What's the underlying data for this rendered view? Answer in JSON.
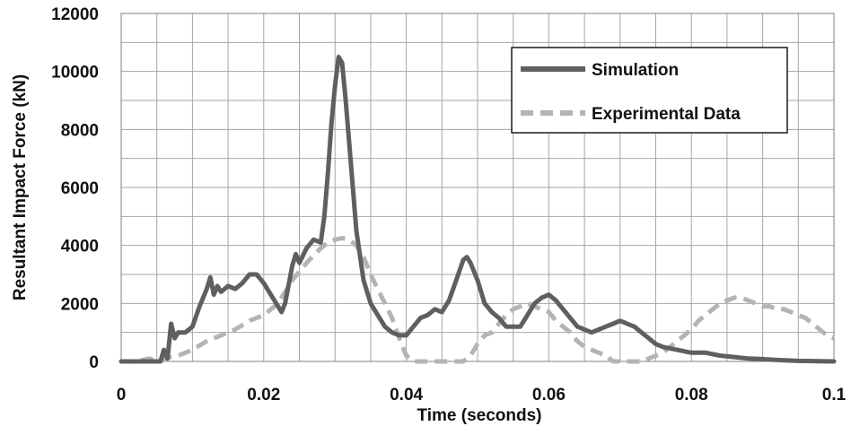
{
  "chart_data": {
    "type": "line",
    "title": "",
    "xlabel": "Time (seconds)",
    "ylabel": "Resultant Impact Force (kN)",
    "xlim": [
      0,
      0.1
    ],
    "ylim": [
      0,
      12000
    ],
    "x_ticks": [
      0,
      0.02,
      0.04,
      0.06,
      0.08,
      0.1
    ],
    "x_tick_labels": [
      "0",
      "0.02",
      "0.04",
      "0.06",
      "0.08",
      "0.1"
    ],
    "y_ticks": [
      0,
      2000,
      4000,
      6000,
      8000,
      10000,
      12000
    ],
    "y_tick_labels": [
      "0",
      "2000",
      "4000",
      "6000",
      "8000",
      "10000",
      "12000"
    ],
    "grid": true,
    "legend_position": "top-right",
    "series": [
      {
        "name": "Simulation",
        "color": "#5f5f5f",
        "style": "solid",
        "x": [
          0,
          0.004,
          0.0055,
          0.006,
          0.0065,
          0.007,
          0.0075,
          0.008,
          0.009,
          0.01,
          0.011,
          0.012,
          0.0125,
          0.013,
          0.0135,
          0.014,
          0.015,
          0.016,
          0.017,
          0.018,
          0.019,
          0.02,
          0.021,
          0.022,
          0.0225,
          0.023,
          0.024,
          0.0245,
          0.025,
          0.026,
          0.027,
          0.028,
          0.0285,
          0.029,
          0.0295,
          0.03,
          0.0305,
          0.031,
          0.0315,
          0.032,
          0.033,
          0.034,
          0.035,
          0.036,
          0.037,
          0.038,
          0.039,
          0.04,
          0.041,
          0.042,
          0.043,
          0.044,
          0.045,
          0.046,
          0.047,
          0.048,
          0.0485,
          0.049,
          0.05,
          0.051,
          0.052,
          0.053,
          0.054,
          0.055,
          0.056,
          0.057,
          0.058,
          0.059,
          0.06,
          0.061,
          0.062,
          0.063,
          0.064,
          0.065,
          0.066,
          0.067,
          0.068,
          0.069,
          0.07,
          0.071,
          0.072,
          0.073,
          0.074,
          0.075,
          0.076,
          0.078,
          0.08,
          0.082,
          0.084,
          0.086,
          0.088,
          0.09,
          0.092,
          0.095,
          0.1
        ],
        "y": [
          0,
          0,
          0,
          400,
          100,
          1300,
          800,
          1000,
          1000,
          1200,
          1900,
          2500,
          2900,
          2300,
          2600,
          2400,
          2600,
          2500,
          2700,
          3000,
          3000,
          2700,
          2300,
          1900,
          1700,
          2000,
          3300,
          3700,
          3400,
          3900,
          4200,
          4100,
          5000,
          6500,
          8200,
          9500,
          10500,
          10300,
          9000,
          7500,
          4500,
          2800,
          2000,
          1600,
          1200,
          1000,
          900,
          900,
          1200,
          1500,
          1600,
          1800,
          1700,
          2100,
          2800,
          3500,
          3600,
          3400,
          2800,
          2000,
          1700,
          1500,
          1200,
          1200,
          1200,
          1600,
          2000,
          2200,
          2300,
          2100,
          1800,
          1500,
          1200,
          1100,
          1000,
          1100,
          1200,
          1300,
          1400,
          1300,
          1200,
          1000,
          800,
          600,
          500,
          400,
          300,
          300,
          200,
          150,
          100,
          80,
          50,
          20,
          0
        ]
      },
      {
        "name": "Experimental Data",
        "color": "#b4b4b4",
        "style": "dashed",
        "x": [
          0,
          0.002,
          0.004,
          0.005,
          0.006,
          0.007,
          0.008,
          0.009,
          0.01,
          0.011,
          0.012,
          0.014,
          0.016,
          0.018,
          0.02,
          0.022,
          0.024,
          0.026,
          0.028,
          0.029,
          0.03,
          0.031,
          0.032,
          0.033,
          0.034,
          0.035,
          0.036,
          0.037,
          0.038,
          0.039,
          0.04,
          0.041,
          0.042,
          0.043,
          0.045,
          0.047,
          0.048,
          0.049,
          0.05,
          0.051,
          0.052,
          0.053,
          0.054,
          0.055,
          0.056,
          0.057,
          0.058,
          0.059,
          0.06,
          0.061,
          0.062,
          0.063,
          0.064,
          0.065,
          0.066,
          0.067,
          0.068,
          0.069,
          0.07,
          0.071,
          0.072,
          0.073,
          0.074,
          0.075,
          0.076,
          0.077,
          0.078,
          0.079,
          0.08,
          0.081,
          0.082,
          0.083,
          0.084,
          0.085,
          0.086,
          0.087,
          0.088,
          0.089,
          0.09,
          0.091,
          0.092,
          0.093,
          0.094,
          0.095,
          0.096,
          0.097,
          0.098,
          0.099,
          0.1
        ],
        "y": [
          0,
          0,
          100,
          0,
          100,
          150,
          200,
          300,
          400,
          550,
          700,
          900,
          1100,
          1400,
          1600,
          2000,
          2800,
          3400,
          3900,
          4100,
          4200,
          4250,
          4200,
          4000,
          3600,
          3000,
          2500,
          2000,
          1500,
          800,
          200,
          0,
          0,
          0,
          0,
          0,
          0,
          200,
          600,
          900,
          1000,
          1300,
          1600,
          1800,
          1900,
          2000,
          1900,
          1800,
          1700,
          1400,
          1200,
          1000,
          700,
          500,
          400,
          300,
          200,
          0,
          -50,
          -100,
          -150,
          0,
          100,
          200,
          300,
          500,
          700,
          900,
          1100,
          1400,
          1600,
          1800,
          2000,
          2100,
          2200,
          2200,
          2100,
          2000,
          1900,
          1900,
          1800,
          1800,
          1700,
          1600,
          1500,
          1300,
          1100,
          900,
          800
        ]
      }
    ]
  }
}
